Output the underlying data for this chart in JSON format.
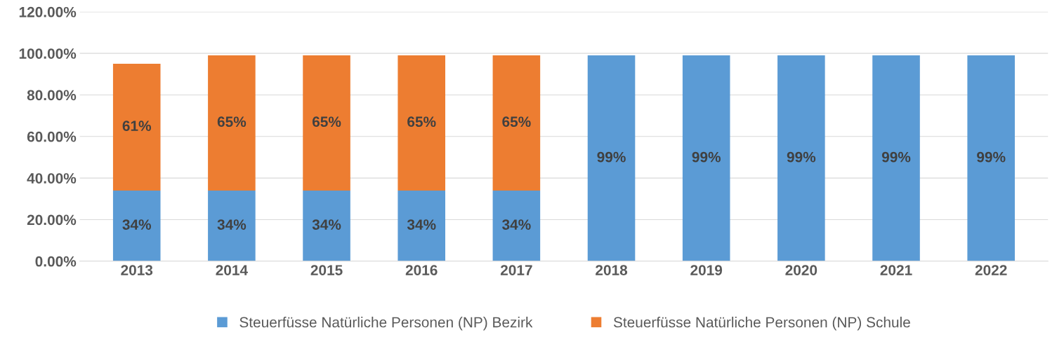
{
  "chart_data": {
    "type": "bar",
    "stacked": true,
    "categories": [
      "2013",
      "2014",
      "2015",
      "2016",
      "2017",
      "2018",
      "2019",
      "2020",
      "2021",
      "2022"
    ],
    "series": [
      {
        "name": "Steuerfüsse Natürliche Personen (NP) Bezirk",
        "color": "#5b9bd5",
        "values": [
          0.34,
          0.34,
          0.34,
          0.34,
          0.34,
          0.99,
          0.99,
          0.99,
          0.99,
          0.99
        ],
        "value_labels": [
          "34%",
          "34%",
          "34%",
          "34%",
          "34%",
          "99%",
          "99%",
          "99%",
          "99%",
          "99%"
        ]
      },
      {
        "name": "Steuerfüsse Natürliche Personen (NP) Schule",
        "color": "#ed7d31",
        "values": [
          0.61,
          0.65,
          0.65,
          0.65,
          0.65,
          null,
          null,
          null,
          null,
          null
        ],
        "value_labels": [
          "61%",
          "65%",
          "65%",
          "65%",
          "65%",
          null,
          null,
          null,
          null,
          null
        ]
      }
    ],
    "ylim": [
      0,
      1.2
    ],
    "yticks": [
      {
        "value": 0,
        "label": "0.00%"
      },
      {
        "value": 0.2,
        "label": "20.00%"
      },
      {
        "value": 0.4,
        "label": "40.00%"
      },
      {
        "value": 0.6,
        "label": "60.00%"
      },
      {
        "value": 0.8,
        "label": "80.00%"
      },
      {
        "value": 1.0,
        "label": "100.00%"
      },
      {
        "value": 1.2,
        "label": "120.00%"
      }
    ],
    "grid": "y",
    "legend": "bottom"
  }
}
